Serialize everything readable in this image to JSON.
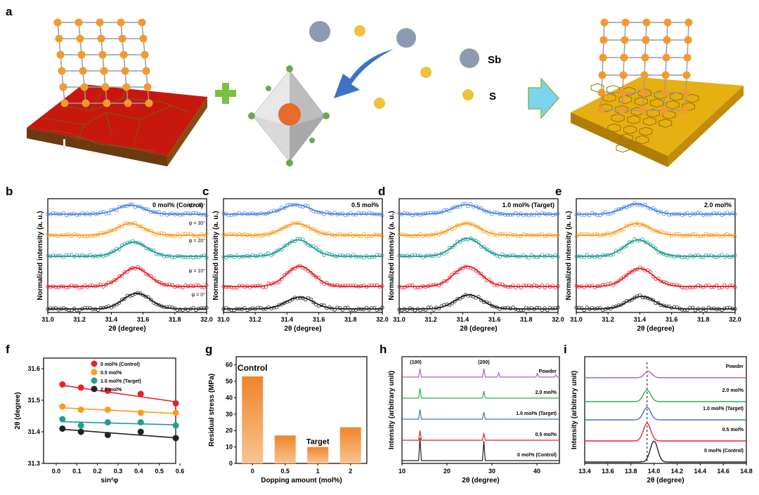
{
  "panel_labels": {
    "a": "a",
    "b": "b",
    "c": "c",
    "d": "d",
    "e": "e",
    "f": "f",
    "g": "g",
    "h": "h",
    "i": "i"
  },
  "schematic": {
    "sb_label": "Sb",
    "s_label": "S",
    "colors": {
      "red": "#c8170f",
      "gold": "#e6b012",
      "atom": "#f29a2e",
      "sb": "#8c9bb0",
      "s": "#efc23a",
      "arrow": "#3d73c4",
      "plus": "#7ac143"
    }
  },
  "xrd": {
    "xlabel": "2θ (degree)",
    "ylabel": "Normalized intensity (a. u.)",
    "xticks": [
      "31.0",
      "31.2",
      "31.4",
      "31.6",
      "31.8",
      "32.0"
    ],
    "psi_labels": [
      "ψ = 40°",
      "ψ = 30°",
      "ψ = 20°",
      "ψ = 10°",
      "ψ = 0°"
    ],
    "series_colors": [
      "#4a86e8",
      "#ff9a1a",
      "#1f9e93",
      "#e8222a",
      "#222222"
    ],
    "panels": [
      {
        "title": "0 mol% (Control)",
        "peaks": [
          31.52,
          31.52,
          31.54,
          31.55,
          31.56
        ],
        "heights": [
          0.22,
          0.4,
          0.55,
          0.85,
          0.65
        ]
      },
      {
        "title": "0.5 mol%",
        "peaks": [
          31.46,
          31.46,
          31.47,
          31.48,
          31.48
        ],
        "heights": [
          0.25,
          0.4,
          0.7,
          0.95,
          0.4
        ]
      },
      {
        "title": "1.0 mol% (Target)",
        "peaks": [
          31.42,
          31.42,
          31.43,
          31.43,
          31.44
        ],
        "heights": [
          0.25,
          0.4,
          0.8,
          0.95,
          0.55
        ]
      },
      {
        "title": "2.0 mol%",
        "peaks": [
          31.38,
          31.38,
          31.39,
          31.4,
          31.41
        ],
        "heights": [
          0.3,
          0.4,
          0.7,
          0.8,
          0.45
        ]
      }
    ]
  },
  "chart_data": [
    {
      "type": "scatter",
      "id": "f",
      "xlabel": "sin²φ",
      "ylabel": "2θ (degree)",
      "xlim": [
        0.0,
        0.6
      ],
      "ylim": [
        31.3,
        31.6
      ],
      "xticks": [
        "0.0",
        "0.1",
        "0.2",
        "0.3",
        "0.4",
        "0.5",
        "0.6"
      ],
      "yticks": [
        "31.3",
        "31.4",
        "31.5",
        "31.6"
      ],
      "x": [
        0.03,
        0.12,
        0.25,
        0.41,
        0.58
      ],
      "series": [
        {
          "name": "0 mol% (Control)",
          "color": "#e8222a",
          "values": [
            31.55,
            31.54,
            31.53,
            31.52,
            31.49
          ],
          "fit": [
            31.547,
            31.495
          ]
        },
        {
          "name": "0.5 mol%",
          "color": "#ff9a1a",
          "values": [
            31.48,
            31.47,
            31.47,
            31.46,
            31.46
          ],
          "fit": [
            31.476,
            31.458
          ]
        },
        {
          "name": "1.0 mol% (Target)",
          "color": "#1f9e93",
          "values": [
            31.44,
            31.42,
            31.43,
            31.43,
            31.42
          ],
          "fit": [
            31.432,
            31.422
          ]
        },
        {
          "name": "2.0 mol%",
          "color": "#222222",
          "values": [
            31.41,
            31.4,
            31.39,
            31.4,
            31.38
          ],
          "fit": [
            31.408,
            31.381
          ]
        }
      ]
    },
    {
      "type": "bar",
      "id": "g",
      "categories": [
        "0",
        "0.5",
        "1",
        "2"
      ],
      "values": [
        53,
        17,
        10,
        22
      ],
      "xlabel": "Dopping amount (mol%)",
      "ylabel": "Residual stress (MPa)",
      "ylim": [
        0,
        65
      ],
      "yticks": [
        "0",
        "10",
        "20",
        "30",
        "40",
        "50",
        "60"
      ],
      "annotations": [
        "Control",
        "Target"
      ],
      "color": "#f29a47"
    },
    {
      "type": "line",
      "id": "h",
      "xlabel": "2θ (degree)",
      "ylabel": "Intensity (arbitrary unit)",
      "xlim": [
        10,
        45
      ],
      "xticks": [
        "10",
        "20",
        "30",
        "40"
      ],
      "peak_labels": [
        "(100)",
        "(200)"
      ],
      "series": [
        {
          "name": "Powder",
          "color": "#a95fd6",
          "peaks": [
            14.0,
            28.2,
            31.5,
            40.1,
            44.2
          ]
        },
        {
          "name": "2.0 mol%",
          "color": "#2aab58",
          "peaks": [
            14.0,
            28.2
          ]
        },
        {
          "name": "1.0 mol% (Target)",
          "color": "#3f73d0",
          "peaks": [
            14.0,
            28.2
          ]
        },
        {
          "name": "0.5 mol%",
          "color": "#e8222a",
          "peaks": [
            14.0,
            28.2
          ]
        },
        {
          "name": "0 mol% (Control)",
          "color": "#222222",
          "peaks": [
            14.0,
            28.2
          ]
        }
      ]
    },
    {
      "type": "line",
      "id": "i",
      "xlabel": "2θ (degree)",
      "ylabel": "Intensity (arbitrary unit)",
      "xlim": [
        13.4,
        14.8
      ],
      "xticks": [
        "13.4",
        "13.6",
        "13.8",
        "14.0",
        "14.2",
        "14.4",
        "14.6",
        "14.8"
      ],
      "reference_line": 13.94,
      "series": [
        {
          "name": "Powder",
          "color": "#a95fd6",
          "peak": 13.95,
          "height": 0.3
        },
        {
          "name": "2.0 mol%",
          "color": "#2aab58",
          "peak": 13.94,
          "height": 0.55
        },
        {
          "name": "1.0 mol% (Target)",
          "color": "#3f73d0",
          "peak": 13.94,
          "height": 0.6
        },
        {
          "name": "0.5 mol%",
          "color": "#e8222a",
          "peak": 13.94,
          "height": 0.85
        },
        {
          "name": "0 mol% (Control)",
          "color": "#222222",
          "peak": 14.0,
          "height": 1.0
        }
      ]
    }
  ]
}
